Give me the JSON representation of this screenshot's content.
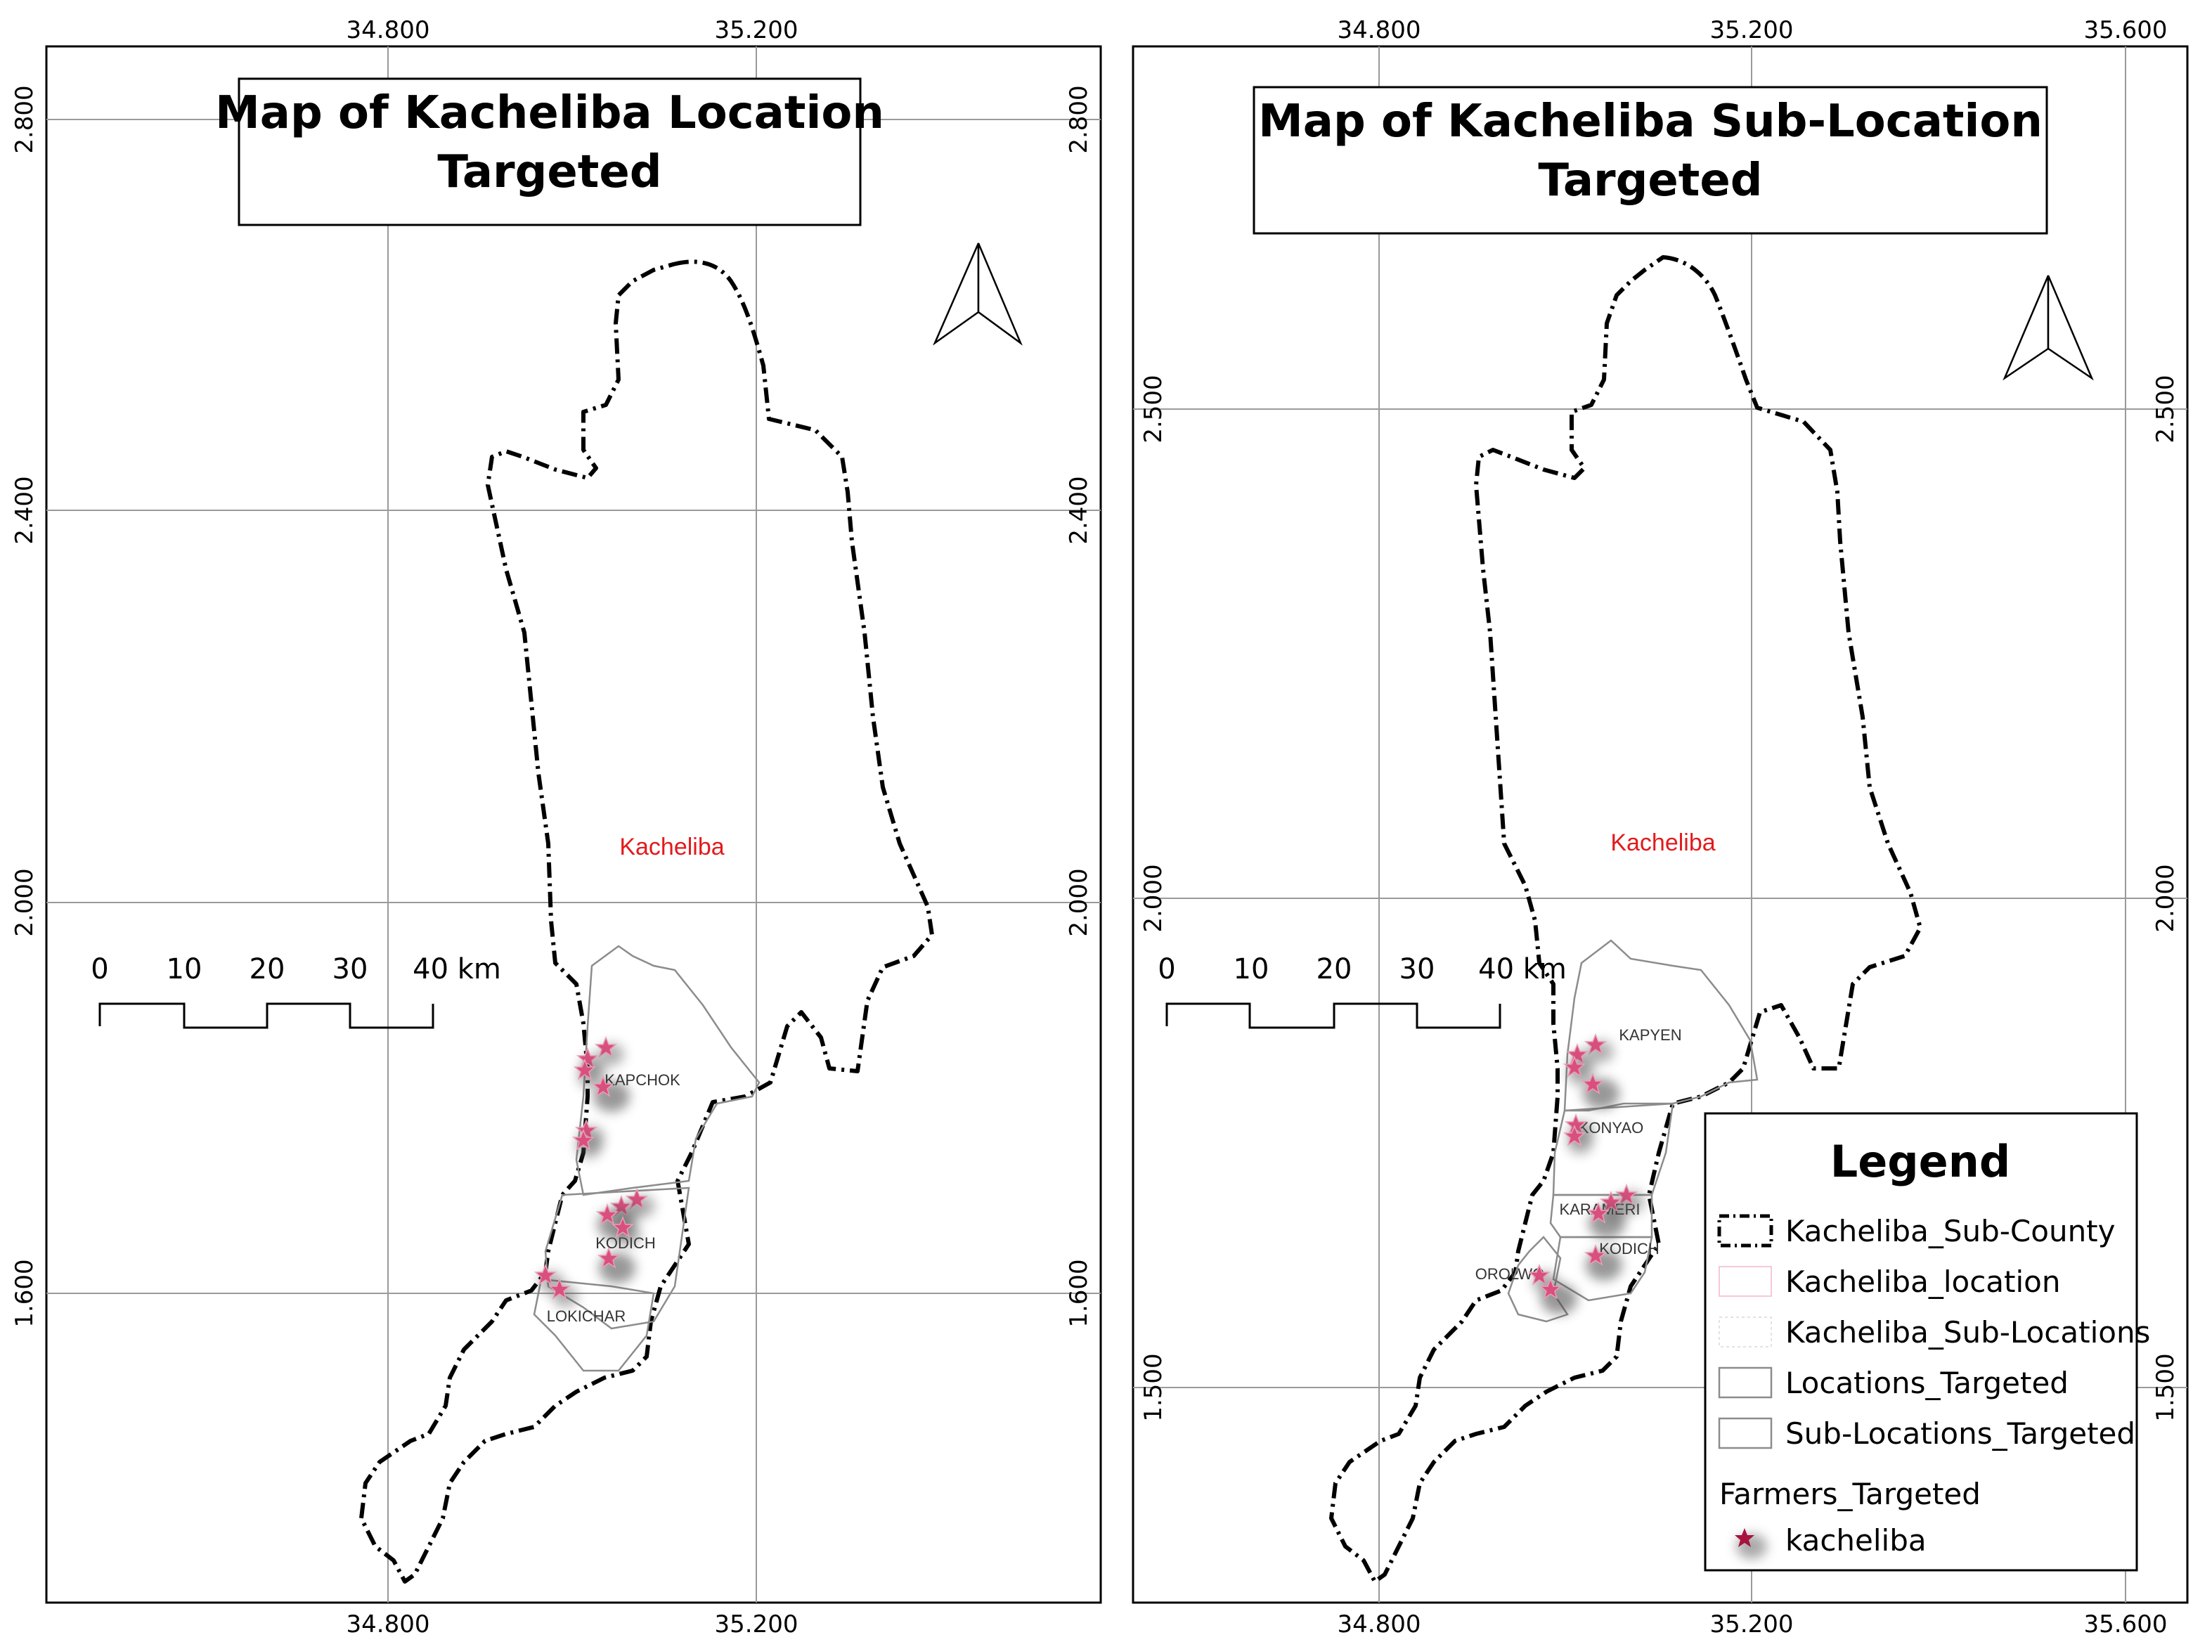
{
  "maps": [
    {
      "id": "location",
      "title_line1": "Map of Kacheliba Location",
      "title_line2": "Targeted",
      "x_ticks": [
        "34.800",
        "35.200"
      ],
      "y_ticks": [
        "2.800",
        "2.400",
        "2.000",
        "1.600"
      ],
      "region_label": "Kacheliba",
      "area_labels": [
        "KAPCHOK",
        "KODICH",
        "LOKICHAR"
      ],
      "scale_labels": [
        "0",
        "10",
        "20",
        "30",
        "40 km"
      ]
    },
    {
      "id": "sub-location",
      "title_line1": "Map of Kacheliba Sub-Location",
      "title_line2": "Targeted",
      "x_ticks": [
        "34.800",
        "35.200",
        "35.600"
      ],
      "y_ticks": [
        "2.500",
        "2.000",
        "1.500"
      ],
      "region_label": "Kacheliba",
      "area_labels": [
        "KAPYEN",
        "KONYAO",
        "KARAMERI",
        "KODICH",
        "OROLWO"
      ],
      "scale_labels": [
        "0",
        "10",
        "20",
        "30",
        "40 km"
      ]
    }
  ],
  "legend": {
    "title": "Legend",
    "items": [
      {
        "label": "Kacheliba_Sub-County",
        "style": "dashed-bold"
      },
      {
        "label": "Kacheliba_location",
        "style": "pink-thin"
      },
      {
        "label": "Kacheliba_Sub-Locations",
        "style": "dotted-light"
      },
      {
        "label": "Locations_Targeted",
        "style": "gray"
      },
      {
        "label": "Sub-Locations_Targeted",
        "style": "gray"
      }
    ],
    "group_label": "Farmers_Targeted",
    "marker_label": "kacheliba"
  },
  "colors": {
    "boundary": "#000000",
    "grid": "#9a9a9a",
    "region_label": "#e31a1c",
    "marker": "#d94f7e",
    "targeted_outline": "#8c8c8c"
  }
}
